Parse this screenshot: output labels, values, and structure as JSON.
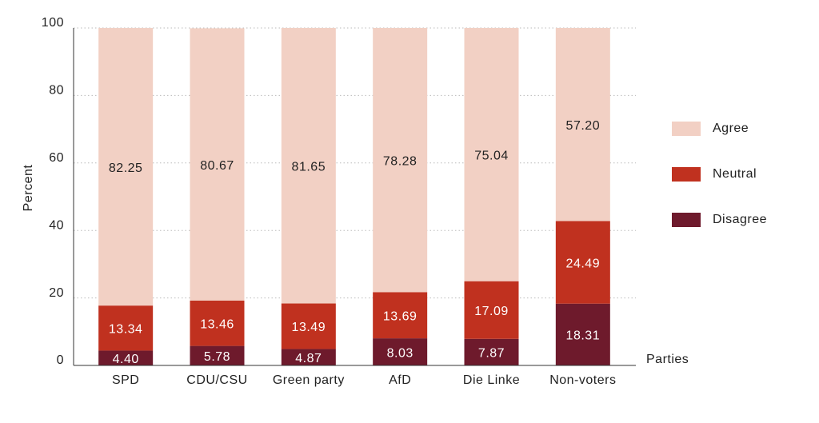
{
  "chart_data": {
    "type": "stacked-bar",
    "y_label": "Percent",
    "x_label": "Parties",
    "categories": [
      "SPD",
      "CDU/CSU",
      "Green party",
      "AfD",
      "Die Linke",
      "Non-voters"
    ],
    "series": [
      {
        "name": "Disagree",
        "color": "#6e1a2c",
        "values": [
          4.4,
          5.78,
          4.87,
          8.03,
          7.87,
          18.31
        ],
        "value_labels": [
          "4.40",
          "5.78",
          "4.87",
          "8.03",
          "7.87",
          "18.31"
        ]
      },
      {
        "name": "Neutral",
        "color": "#c0311f",
        "values": [
          13.34,
          13.46,
          13.49,
          13.69,
          17.09,
          24.49
        ],
        "value_labels": [
          "13.34",
          "13.46",
          "13.49",
          "13.69",
          "17.09",
          "24.49"
        ]
      },
      {
        "name": "Agree",
        "color": "#f2d0c4",
        "values": [
          82.25,
          80.67,
          81.65,
          78.28,
          75.04,
          57.2
        ],
        "value_labels": [
          "82.25",
          "80.67",
          "81.65",
          "78.28",
          "75.04",
          "57.20"
        ]
      }
    ],
    "ylim": [
      0,
      100
    ],
    "yticks": [
      0,
      20,
      40,
      60,
      80,
      100
    ],
    "grid": true
  }
}
